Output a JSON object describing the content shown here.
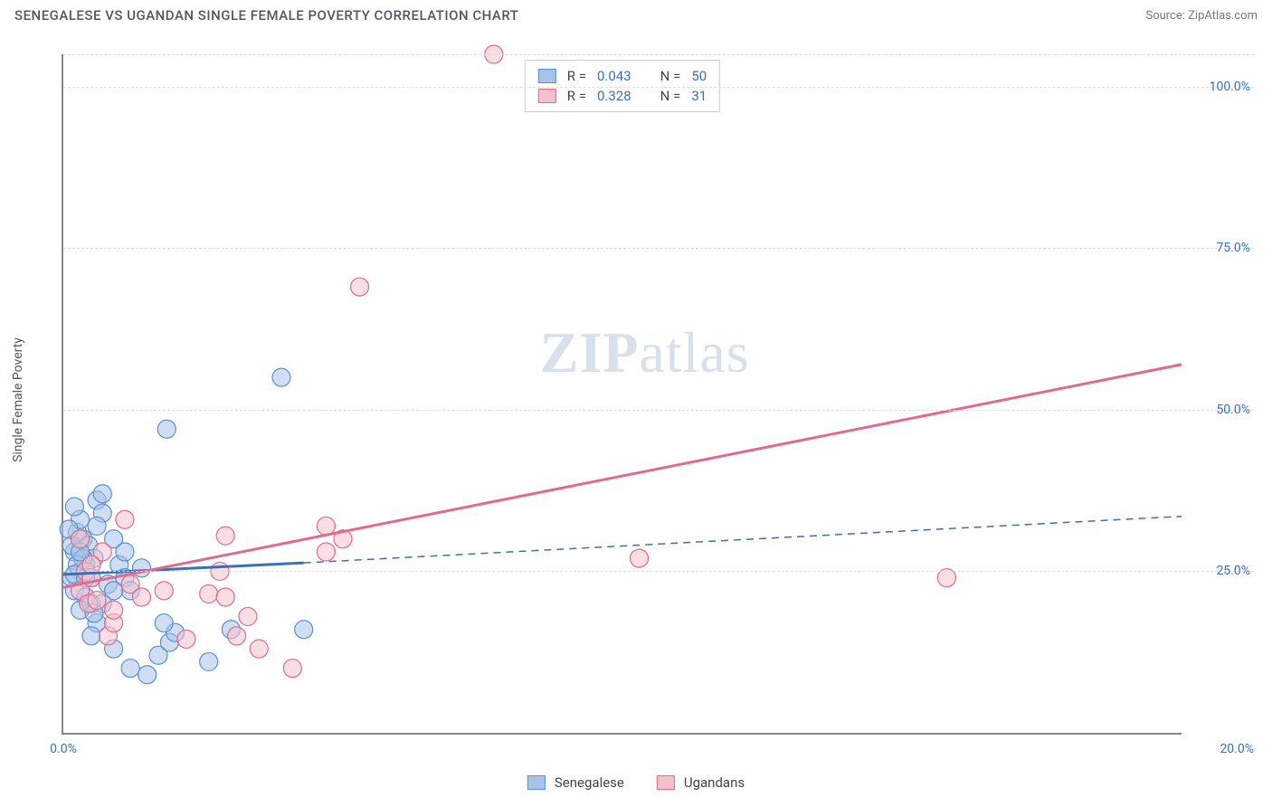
{
  "header": {
    "title": "SENEGALESE VS UGANDAN SINGLE FEMALE POVERTY CORRELATION CHART",
    "source_label": "Source: ",
    "source_name": "ZipAtlas.com"
  },
  "chart": {
    "type": "scatter",
    "y_axis_label": "Single Female Poverty",
    "background_color": "#ffffff",
    "grid_color": "#dddddd",
    "axis_color": "#888888",
    "xlim": [
      0,
      20
    ],
    "ylim": [
      0,
      105
    ],
    "y_ticks": [
      {
        "value": 25,
        "label": "25.0%"
      },
      {
        "value": 50,
        "label": "50.0%"
      },
      {
        "value": 75,
        "label": "75.0%"
      },
      {
        "value": 100,
        "label": "100.0%"
      }
    ],
    "x_ticks": [
      {
        "value": 0,
        "label": "0.0%"
      },
      {
        "value": 20,
        "label": "20.0%"
      }
    ],
    "watermark_text_a": "ZIP",
    "watermark_text_b": "atlas",
    "series": [
      {
        "name": "Senegalese",
        "fill_color": "#a8c3e8",
        "stroke_color": "#5a8fd6",
        "marker_radius": 10,
        "fill_opacity": 0.55,
        "R": "0.043",
        "N": "50",
        "regression": {
          "x1": 0,
          "y1": 24.5,
          "x2": 4.3,
          "y2": 26.3,
          "dash_x1": 4.3,
          "dash_y1": 26.3,
          "dash_x2": 20,
          "dash_y2": 33.5,
          "color": "#3b6fb6",
          "width": 3
        },
        "points": [
          [
            0.2,
            28
          ],
          [
            0.3,
            25
          ],
          [
            0.2,
            22
          ],
          [
            0.35,
            30
          ],
          [
            0.4,
            26
          ],
          [
            0.25,
            31
          ],
          [
            0.3,
            33
          ],
          [
            0.2,
            35
          ],
          [
            0.5,
            24
          ],
          [
            0.45,
            29
          ],
          [
            0.55,
            27
          ],
          [
            0.15,
            24
          ],
          [
            0.4,
            21
          ],
          [
            0.3,
            19
          ],
          [
            0.6,
            36
          ],
          [
            0.7,
            34
          ],
          [
            0.8,
            23
          ],
          [
            0.9,
            30
          ],
          [
            1.0,
            26
          ],
          [
            1.1,
            28
          ],
          [
            1.1,
            24
          ],
          [
            1.2,
            22
          ],
          [
            0.5,
            20
          ],
          [
            0.6,
            17
          ],
          [
            0.5,
            15
          ],
          [
            0.9,
            13
          ],
          [
            1.2,
            10
          ],
          [
            1.5,
            9
          ],
          [
            1.7,
            12
          ],
          [
            1.9,
            14
          ],
          [
            2.6,
            11
          ],
          [
            2.0,
            15.5
          ],
          [
            1.8,
            17
          ],
          [
            3.0,
            16
          ],
          [
            4.3,
            16
          ],
          [
            3.9,
            55
          ],
          [
            1.85,
            47
          ],
          [
            0.7,
            37
          ],
          [
            0.6,
            32
          ],
          [
            0.35,
            27
          ],
          [
            0.25,
            26
          ],
          [
            0.15,
            29
          ],
          [
            0.1,
            31.5
          ],
          [
            0.2,
            24.5
          ],
          [
            1.4,
            25.5
          ],
          [
            0.9,
            22
          ],
          [
            0.7,
            20
          ],
          [
            0.55,
            18.5
          ],
          [
            0.4,
            24
          ],
          [
            0.3,
            28
          ]
        ]
      },
      {
        "name": "Ugandans",
        "fill_color": "#f4c2cd",
        "stroke_color": "#e06b8a",
        "marker_radius": 10,
        "fill_opacity": 0.55,
        "R": "0.328",
        "N": "31",
        "regression": {
          "x1": 0,
          "y1": 22.5,
          "x2": 20,
          "y2": 57,
          "color": "#e06b8a",
          "width": 3
        },
        "points": [
          [
            0.3,
            22
          ],
          [
            0.4,
            25
          ],
          [
            0.45,
            20
          ],
          [
            0.5,
            24
          ],
          [
            0.6,
            20.5
          ],
          [
            0.8,
            15
          ],
          [
            0.9,
            17
          ],
          [
            0.9,
            19
          ],
          [
            1.1,
            33
          ],
          [
            1.2,
            23
          ],
          [
            1.4,
            21
          ],
          [
            1.8,
            22
          ],
          [
            2.2,
            14.5
          ],
          [
            2.6,
            21.5
          ],
          [
            2.8,
            25
          ],
          [
            2.9,
            21
          ],
          [
            2.9,
            30.5
          ],
          [
            3.1,
            15
          ],
          [
            3.3,
            18
          ],
          [
            3.5,
            13
          ],
          [
            4.1,
            10
          ],
          [
            4.7,
            28
          ],
          [
            5.0,
            30
          ],
          [
            4.7,
            32
          ],
          [
            5.3,
            69
          ],
          [
            10.3,
            27
          ],
          [
            15.8,
            24
          ],
          [
            7.7,
            105
          ],
          [
            0.7,
            28
          ],
          [
            0.5,
            26
          ],
          [
            0.3,
            30
          ]
        ]
      }
    ],
    "correlation_legend": {
      "r_label": "R =",
      "n_label": "N ="
    },
    "bottom_legend_labels": [
      "Senegalese",
      "Ugandans"
    ]
  }
}
